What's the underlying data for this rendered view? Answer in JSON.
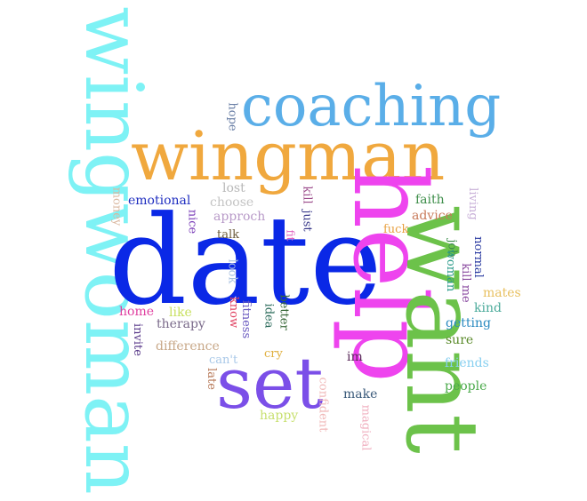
{
  "words": [
    {
      "key": "wingwoman",
      "text": "wingwoman",
      "color": "#7ef2f5",
      "rotated": true
    },
    {
      "key": "coaching",
      "text": "coaching",
      "color": "#5aaee8",
      "rotated": false
    },
    {
      "key": "wingman",
      "text": "wingman",
      "color": "#f0a83e",
      "rotated": false
    },
    {
      "key": "date",
      "text": "date",
      "color": "#0a28e6",
      "rotated": false
    },
    {
      "key": "help",
      "text": "help",
      "color": "#ee44ee",
      "rotated": true
    },
    {
      "key": "want",
      "text": "want",
      "color": "#6cc24a",
      "rotated": true
    },
    {
      "key": "set",
      "text": "set",
      "color": "#7b4fe8",
      "rotated": false
    },
    {
      "key": "hope",
      "text": "hope",
      "color": "#6a7fa6",
      "rotated": true
    },
    {
      "key": "lost",
      "text": "lost",
      "color": "#b8b8b8",
      "rotated": false
    },
    {
      "key": "choose",
      "text": "choose",
      "color": "#c4c4c4",
      "rotated": false
    },
    {
      "key": "approch",
      "text": "approch",
      "color": "#b89ac8",
      "rotated": false
    },
    {
      "key": "emotional",
      "text": "emotional",
      "color": "#1f2ec0",
      "rotated": false
    },
    {
      "key": "money",
      "text": "money",
      "color": "#d9b8a0",
      "rotated": true
    },
    {
      "key": "nice",
      "text": "nice",
      "color": "#7a3db8",
      "rotated": true
    },
    {
      "key": "talk",
      "text": "talk",
      "color": "#6b5a3a",
      "rotated": false
    },
    {
      "key": "kill",
      "text": "kill",
      "color": "#9a4a8a",
      "rotated": true
    },
    {
      "key": "just",
      "text": "just",
      "color": "#3a3a8a",
      "rotated": true
    },
    {
      "key": "fit",
      "text": "fit",
      "color": "#e060c0",
      "rotated": true
    },
    {
      "key": "faith",
      "text": "faith",
      "color": "#3e8e4a",
      "rotated": false
    },
    {
      "key": "living",
      "text": "living",
      "color": "#c8b0d8",
      "rotated": true
    },
    {
      "key": "advice",
      "text": "advice",
      "color": "#c87a5a",
      "rotated": false
    },
    {
      "key": "fuck",
      "text": "fuck",
      "color": "#e8a040",
      "rotated": false
    },
    {
      "key": "job",
      "text": "job",
      "color": "#3a8a4a",
      "rotated": true
    },
    {
      "key": "normal",
      "text": "normal",
      "color": "#2a3aa0",
      "rotated": true
    },
    {
      "key": "kill_me",
      "text": "kill me",
      "color": "#8a4aa0",
      "rotated": true
    },
    {
      "key": "woman",
      "text": "woman",
      "color": "#2a9a8a",
      "rotated": true
    },
    {
      "key": "mates",
      "text": "mates",
      "color": "#e8c060",
      "rotated": false
    },
    {
      "key": "kind",
      "text": "kind",
      "color": "#4aaa9a",
      "rotated": false
    },
    {
      "key": "getting",
      "text": "getting",
      "color": "#2a8ac0",
      "rotated": false
    },
    {
      "key": "sure",
      "text": "sure",
      "color": "#5a8a2a",
      "rotated": false
    },
    {
      "key": "friends",
      "text": "friends",
      "color": "#88d0f0",
      "rotated": false
    },
    {
      "key": "people",
      "text": "people",
      "color": "#4aaa4a",
      "rotated": false
    },
    {
      "key": "look",
      "text": "look",
      "color": "#a8c0e0",
      "rotated": true
    },
    {
      "key": "know",
      "text": "know",
      "color": "#e04060",
      "rotated": true
    },
    {
      "key": "fitness",
      "text": "fitness",
      "color": "#6a5ac0",
      "rotated": true
    },
    {
      "key": "idea",
      "text": "idea",
      "color": "#2a6a5a",
      "rotated": true
    },
    {
      "key": "better",
      "text": "better",
      "color": "#3a6a3a",
      "rotated": true
    },
    {
      "key": "home",
      "text": "home",
      "color": "#e040a0",
      "rotated": false
    },
    {
      "key": "like",
      "text": "like",
      "color": "#c8e060",
      "rotated": false
    },
    {
      "key": "therapy",
      "text": "therapy",
      "color": "#7a6a8a",
      "rotated": false
    },
    {
      "key": "invite",
      "text": "invite",
      "color": "#5a3a8a",
      "rotated": true
    },
    {
      "key": "difference",
      "text": "difference",
      "color": "#c8a888",
      "rotated": false
    },
    {
      "key": "cant",
      "text": "can't",
      "color": "#a8c8e8",
      "rotated": false
    },
    {
      "key": "cry",
      "text": "cry",
      "color": "#e0b040",
      "rotated": false
    },
    {
      "key": "im",
      "text": "im",
      "color": "#5a2a5a",
      "rotated": false
    },
    {
      "key": "late",
      "text": "late",
      "color": "#b87a5a",
      "rotated": true
    },
    {
      "key": "confident",
      "text": "confident",
      "color": "#f0b8b8",
      "rotated": true
    },
    {
      "key": "make",
      "text": "make",
      "color": "#3a5a7a",
      "rotated": false
    },
    {
      "key": "happy",
      "text": "happy",
      "color": "#c8e070",
      "rotated": false
    },
    {
      "key": "magical",
      "text": "magical",
      "color": "#f0b0c0",
      "rotated": true
    }
  ]
}
